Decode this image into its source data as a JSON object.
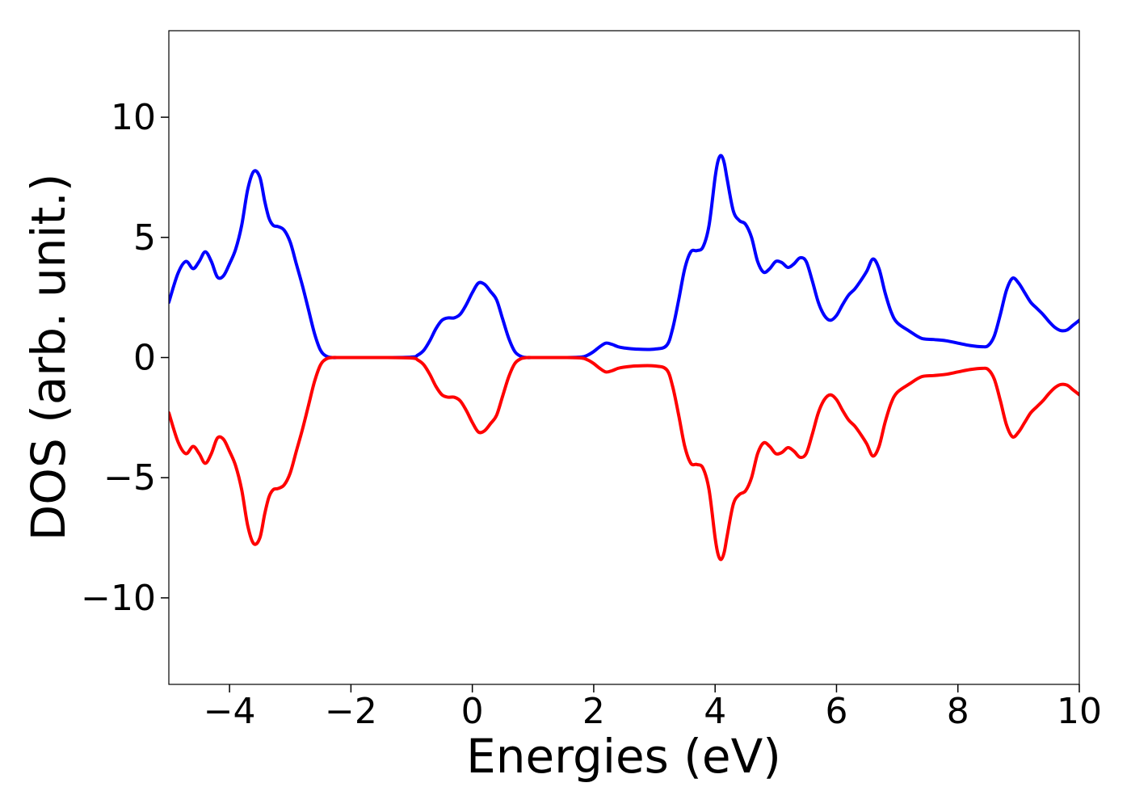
{
  "chart_data": {
    "type": "line",
    "title": "",
    "xlabel": "Energies (eV)",
    "ylabel": "DOS (arb. unit.)",
    "xlim": [
      -5,
      10
    ],
    "ylim": [
      -13.6,
      13.6
    ],
    "xticks": [
      -4,
      -2,
      0,
      2,
      4,
      6,
      8,
      10
    ],
    "xtick_labels": [
      "−4",
      "−2",
      "0",
      "2",
      "4",
      "6",
      "8",
      "10"
    ],
    "yticks": [
      -10,
      -5,
      0,
      5,
      10
    ],
    "ytick_labels": [
      "−10",
      "−5",
      "0",
      "5",
      "10"
    ],
    "grid": false,
    "legend": "none",
    "series": [
      {
        "color": "#0000ff",
        "x": [
          -5.0,
          -4.85,
          -4.72,
          -4.6,
          -4.5,
          -4.4,
          -4.3,
          -4.2,
          -4.1,
          -4.0,
          -3.9,
          -3.8,
          -3.7,
          -3.6,
          -3.5,
          -3.42,
          -3.35,
          -3.28,
          -3.2,
          -3.1,
          -3.0,
          -2.9,
          -2.8,
          -2.7,
          -2.6,
          -2.5,
          -2.4,
          -2.3,
          -2.2,
          -2.1,
          -2.0,
          -1.5,
          -1.0,
          -0.9,
          -0.8,
          -0.7,
          -0.6,
          -0.5,
          -0.4,
          -0.3,
          -0.2,
          -0.1,
          0.0,
          0.1,
          0.2,
          0.3,
          0.4,
          0.5,
          0.6,
          0.7,
          0.8,
          0.9,
          1.0,
          1.1,
          1.2,
          1.5,
          1.8,
          1.9,
          2.0,
          2.1,
          2.2,
          2.3,
          2.4,
          2.5,
          2.7,
          3.0,
          3.2,
          3.3,
          3.4,
          3.5,
          3.6,
          3.7,
          3.8,
          3.9,
          4.0,
          4.05,
          4.1,
          4.15,
          4.2,
          4.3,
          4.4,
          4.5,
          4.6,
          4.7,
          4.8,
          4.9,
          5.0,
          5.1,
          5.2,
          5.3,
          5.4,
          5.5,
          5.6,
          5.7,
          5.8,
          5.9,
          6.0,
          6.1,
          6.2,
          6.3,
          6.4,
          6.5,
          6.6,
          6.7,
          6.8,
          6.9,
          7.0,
          7.2,
          7.4,
          7.6,
          7.8,
          8.0,
          8.2,
          8.4,
          8.5,
          8.6,
          8.7,
          8.8,
          8.9,
          9.0,
          9.1,
          9.2,
          9.3,
          9.4,
          9.5,
          9.6,
          9.7,
          9.8,
          9.9,
          10.0
        ],
        "values": [
          2.3,
          3.5,
          4.0,
          3.7,
          4.0,
          4.4,
          4.0,
          3.35,
          3.4,
          3.9,
          4.5,
          5.5,
          7.0,
          7.75,
          7.5,
          6.5,
          5.8,
          5.5,
          5.45,
          5.3,
          4.8,
          3.9,
          3.0,
          2.0,
          1.0,
          0.3,
          0.05,
          0.0,
          0.0,
          0.0,
          0.0,
          0.0,
          0.02,
          0.1,
          0.3,
          0.7,
          1.2,
          1.55,
          1.65,
          1.65,
          1.8,
          2.2,
          2.7,
          3.1,
          3.05,
          2.75,
          2.4,
          1.6,
          0.8,
          0.25,
          0.05,
          0.0,
          0.0,
          0.0,
          0.0,
          0.0,
          0.02,
          0.1,
          0.25,
          0.45,
          0.6,
          0.55,
          0.45,
          0.4,
          0.35,
          0.35,
          0.5,
          1.2,
          2.4,
          3.7,
          4.4,
          4.45,
          4.6,
          5.5,
          7.5,
          8.2,
          8.4,
          8.1,
          7.4,
          6.1,
          5.7,
          5.55,
          5.0,
          4.0,
          3.55,
          3.7,
          4.0,
          3.95,
          3.75,
          3.9,
          4.15,
          4.0,
          3.2,
          2.3,
          1.75,
          1.55,
          1.75,
          2.2,
          2.6,
          2.85,
          3.2,
          3.6,
          4.1,
          3.7,
          2.7,
          1.9,
          1.45,
          1.1,
          0.8,
          0.75,
          0.7,
          0.6,
          0.5,
          0.45,
          0.5,
          0.9,
          1.8,
          2.8,
          3.3,
          3.1,
          2.7,
          2.3,
          2.05,
          1.8,
          1.5,
          1.25,
          1.12,
          1.15,
          1.35,
          1.55
        ]
      },
      {
        "color": "#ff0000",
        "x": [
          -5.0,
          -4.85,
          -4.72,
          -4.6,
          -4.5,
          -4.4,
          -4.3,
          -4.2,
          -4.1,
          -4.0,
          -3.9,
          -3.8,
          -3.7,
          -3.6,
          -3.5,
          -3.42,
          -3.35,
          -3.28,
          -3.2,
          -3.1,
          -3.0,
          -2.9,
          -2.8,
          -2.7,
          -2.6,
          -2.5,
          -2.4,
          -2.3,
          -2.2,
          -2.1,
          -2.0,
          -1.5,
          -1.0,
          -0.9,
          -0.8,
          -0.7,
          -0.6,
          -0.5,
          -0.4,
          -0.3,
          -0.2,
          -0.1,
          0.0,
          0.1,
          0.2,
          0.3,
          0.4,
          0.5,
          0.6,
          0.7,
          0.8,
          0.9,
          1.0,
          1.1,
          1.2,
          1.5,
          1.8,
          1.9,
          2.0,
          2.1,
          2.2,
          2.3,
          2.4,
          2.5,
          2.7,
          3.0,
          3.2,
          3.3,
          3.4,
          3.5,
          3.6,
          3.7,
          3.8,
          3.9,
          4.0,
          4.05,
          4.1,
          4.15,
          4.2,
          4.3,
          4.4,
          4.5,
          4.6,
          4.7,
          4.8,
          4.9,
          5.0,
          5.1,
          5.2,
          5.3,
          5.4,
          5.5,
          5.6,
          5.7,
          5.8,
          5.9,
          6.0,
          6.1,
          6.2,
          6.3,
          6.4,
          6.5,
          6.6,
          6.7,
          6.8,
          6.9,
          7.0,
          7.2,
          7.4,
          7.6,
          7.8,
          8.0,
          8.2,
          8.4,
          8.5,
          8.6,
          8.7,
          8.8,
          8.9,
          9.0,
          9.1,
          9.2,
          9.3,
          9.4,
          9.5,
          9.6,
          9.7,
          9.8,
          9.9,
          10.0
        ],
        "values": [
          -2.3,
          -3.5,
          -4.0,
          -3.7,
          -4.0,
          -4.4,
          -4.0,
          -3.35,
          -3.4,
          -3.9,
          -4.5,
          -5.5,
          -7.0,
          -7.75,
          -7.5,
          -6.5,
          -5.8,
          -5.5,
          -5.45,
          -5.3,
          -4.8,
          -3.9,
          -3.0,
          -2.0,
          -1.0,
          -0.3,
          -0.05,
          0.0,
          0.0,
          0.0,
          0.0,
          0.0,
          -0.02,
          -0.1,
          -0.3,
          -0.7,
          -1.2,
          -1.55,
          -1.65,
          -1.65,
          -1.8,
          -2.2,
          -2.7,
          -3.1,
          -3.05,
          -2.75,
          -2.4,
          -1.6,
          -0.8,
          -0.25,
          -0.05,
          0.0,
          0.0,
          0.0,
          0.0,
          0.0,
          -0.02,
          -0.1,
          -0.25,
          -0.45,
          -0.6,
          -0.55,
          -0.45,
          -0.4,
          -0.35,
          -0.35,
          -0.5,
          -1.2,
          -2.4,
          -3.7,
          -4.4,
          -4.45,
          -4.6,
          -5.5,
          -7.5,
          -8.2,
          -8.4,
          -8.1,
          -7.4,
          -6.1,
          -5.7,
          -5.55,
          -5.0,
          -4.0,
          -3.55,
          -3.7,
          -4.0,
          -3.95,
          -3.75,
          -3.9,
          -4.15,
          -4.0,
          -3.2,
          -2.3,
          -1.75,
          -1.55,
          -1.75,
          -2.2,
          -2.6,
          -2.85,
          -3.2,
          -3.6,
          -4.1,
          -3.7,
          -2.7,
          -1.9,
          -1.45,
          -1.1,
          -0.8,
          -0.75,
          -0.7,
          -0.6,
          -0.5,
          -0.45,
          -0.5,
          -0.9,
          -1.8,
          -2.8,
          -3.3,
          -3.1,
          -2.7,
          -2.3,
          -2.05,
          -1.8,
          -1.5,
          -1.25,
          -1.12,
          -1.15,
          -1.35,
          -1.55
        ]
      }
    ]
  }
}
